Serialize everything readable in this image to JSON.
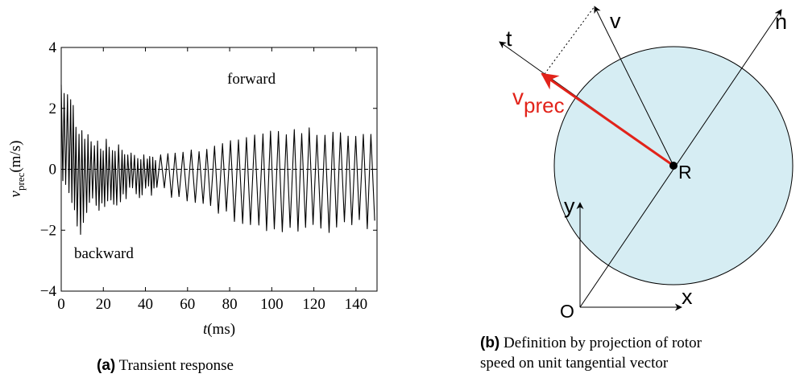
{
  "panel_a": {
    "caption_tag": "(a)",
    "caption_text": "Transient response",
    "annotations": {
      "upper": "forward",
      "lower": "backward"
    },
    "chart_data": {
      "type": "line",
      "xlabel_symbol": "t",
      "xlabel_unit": "(ms)",
      "ylabel_symbol": "v",
      "ylabel_subscript": "prec",
      "ylabel_unit": "(m/s)",
      "xlim": [
        0,
        150
      ],
      "ylim": [
        -4,
        4
      ],
      "xticks": [
        0,
        20,
        40,
        60,
        80,
        100,
        120,
        140
      ],
      "yticks": [
        -4,
        -2,
        0,
        2,
        4
      ],
      "ytick_labels": [
        "−4",
        "−2",
        "0",
        "2",
        "4"
      ],
      "reference_line_y": 0,
      "series": [
        {
          "color": "#000000",
          "envelope": [
            {
              "t": 0,
              "max": 3.6,
              "min": -0.5
            },
            {
              "t": 3,
              "max": 3.0,
              "min": -1.0
            },
            {
              "t": 6,
              "max": 2.4,
              "min": -1.6
            },
            {
              "t": 9,
              "max": 1.8,
              "min": -2.2
            },
            {
              "t": 15,
              "max": 1.2,
              "min": -1.6
            },
            {
              "t": 25,
              "max": 0.9,
              "min": -1.3
            },
            {
              "t": 35,
              "max": 0.6,
              "min": -1.0
            },
            {
              "t": 45,
              "max": 0.5,
              "min": -0.9
            },
            {
              "t": 55,
              "max": 0.6,
              "min": -1.1
            },
            {
              "t": 65,
              "max": 0.7,
              "min": -1.3
            },
            {
              "t": 75,
              "max": 0.9,
              "min": -1.6
            },
            {
              "t": 85,
              "max": 1.1,
              "min": -1.8
            },
            {
              "t": 95,
              "max": 1.3,
              "min": -2.0
            },
            {
              "t": 105,
              "max": 1.4,
              "min": -2.1
            },
            {
              "t": 115,
              "max": 1.4,
              "min": -2.2
            },
            {
              "t": 125,
              "max": 1.3,
              "min": -2.3
            },
            {
              "t": 135,
              "max": 1.2,
              "min": -2.1
            },
            {
              "t": 145,
              "max": 1.3,
              "min": -2.0
            },
            {
              "t": 150,
              "max": 1.3,
              "min": -1.9
            }
          ]
        }
      ]
    }
  },
  "panel_b": {
    "caption_tag": "(b)",
    "caption_line1": "Definition by projection of rotor",
    "caption_line2": "speed on unit tangential vector",
    "labels": {
      "v": "v",
      "n": "n",
      "t": "t",
      "vprec_main": "v",
      "vprec_sub": "prec",
      "R": "R",
      "y": "y",
      "x": "x",
      "O": "O"
    },
    "colors": {
      "disk_fill": "#d6edf3",
      "vector_prec": "#e2231a",
      "line": "#000000"
    }
  }
}
